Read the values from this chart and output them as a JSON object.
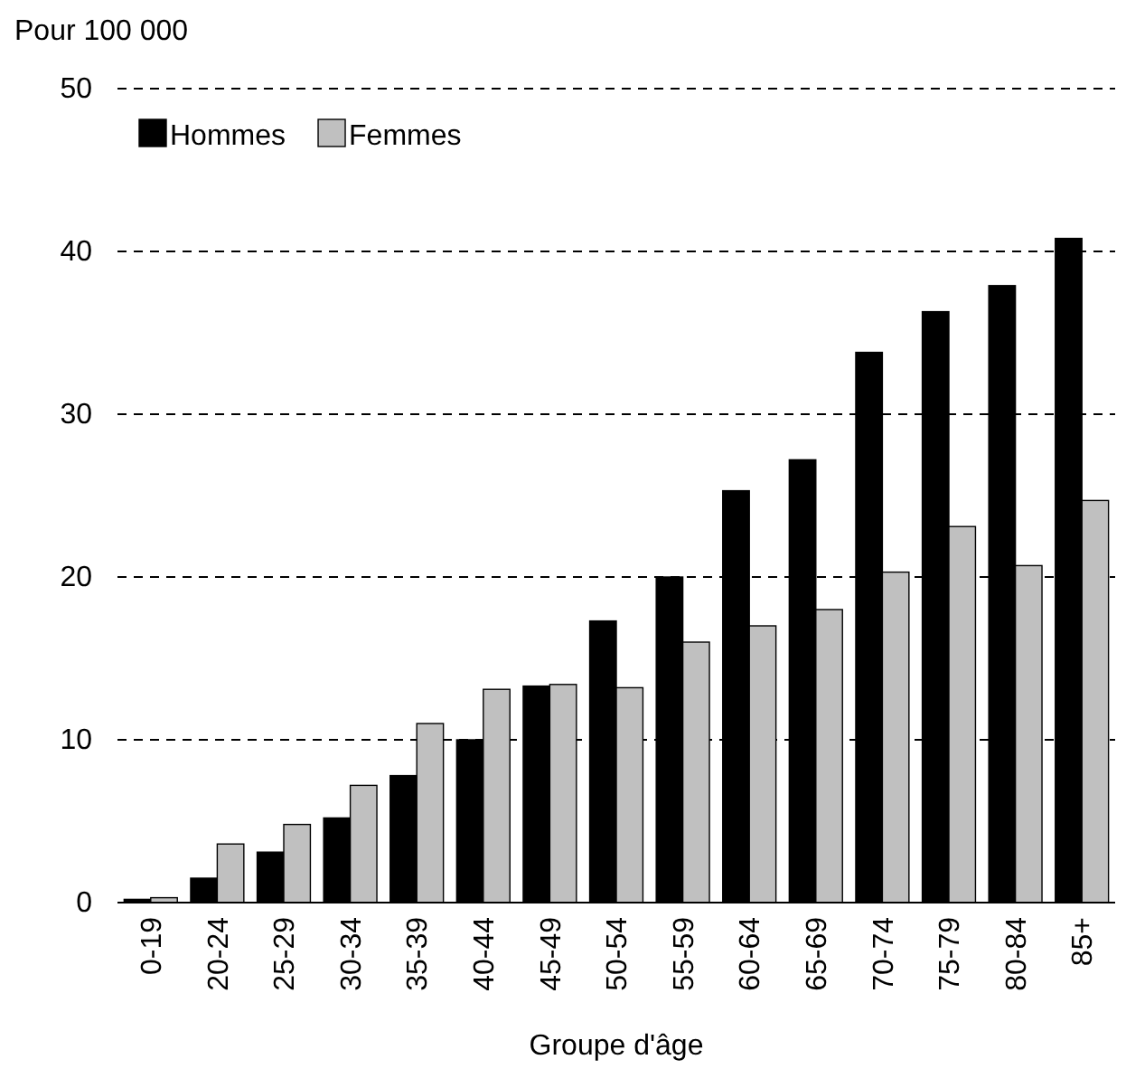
{
  "chart_data": {
    "type": "bar",
    "ylabel": "Pour 100 000",
    "xlabel": "Groupe d'âge",
    "categories": [
      "0-19",
      "20-24",
      "25-29",
      "30-34",
      "35-39",
      "40-44",
      "45-49",
      "50-54",
      "55-59",
      "60-64",
      "65-69",
      "70-74",
      "75-79",
      "80-84",
      "85+"
    ],
    "series": [
      {
        "name": "Hommes",
        "color": "#000000",
        "values": [
          0.2,
          1.5,
          3.1,
          5.2,
          7.8,
          10.0,
          13.3,
          17.3,
          20.0,
          25.3,
          27.2,
          33.8,
          36.3,
          37.9,
          40.8
        ]
      },
      {
        "name": "Femmes",
        "color": "#c0c0c0",
        "values": [
          0.3,
          3.6,
          4.8,
          7.2,
          11.0,
          13.1,
          13.4,
          13.2,
          16.0,
          17.0,
          18.0,
          20.3,
          23.1,
          20.7,
          24.7
        ]
      }
    ],
    "ylim": [
      0,
      50
    ],
    "yticks": [
      0,
      10,
      20,
      30,
      40,
      50
    ],
    "grid": "y",
    "legend": "top left"
  }
}
